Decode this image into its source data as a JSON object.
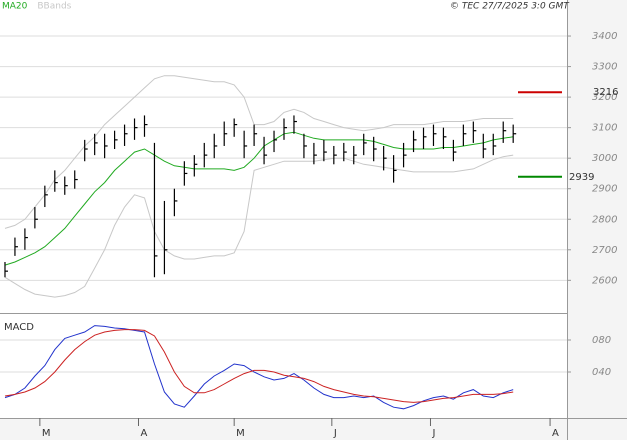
{
  "header": {
    "copyright": "© TEC 27/7/2025 3:0 GMT"
  },
  "xaxis": {
    "xlim": [
      -0.5,
      56.4
    ],
    "xticks": [
      {
        "value": 3.5,
        "label": "M"
      },
      {
        "value": 13.4,
        "label": "A"
      },
      {
        "value": 23.0,
        "label": "M"
      },
      {
        "value": 32.8,
        "label": "J"
      },
      {
        "value": 42.7,
        "label": "J"
      },
      {
        "value": 54.7,
        "label": "A"
      }
    ]
  },
  "chart_data": [
    {
      "type": "ohlc",
      "ylim": [
        2493,
        3518
      ],
      "yticks": [
        2600,
        2700,
        2800,
        2900,
        3000,
        3100,
        3200,
        3300,
        3400
      ],
      "grid": true,
      "bar_color": "#000",
      "high": [
        2660,
        2740,
        2770,
        2840,
        2910,
        2960,
        2940,
        2960,
        3060,
        3080,
        3080,
        3090,
        3110,
        3130,
        3140,
        3050,
        2860,
        2900,
        2990,
        3010,
        3050,
        3080,
        3120,
        3130,
        3090,
        3110,
        3070,
        3090,
        3130,
        3140,
        3080,
        3050,
        3060,
        3040,
        3050,
        3040,
        3080,
        3070,
        3040,
        3010,
        3050,
        3090,
        3100,
        3110,
        3100,
        3060,
        3110,
        3120,
        3080,
        3080,
        3120,
        3110
      ],
      "low": [
        2610,
        2680,
        2700,
        2770,
        2840,
        2890,
        2880,
        2900,
        2990,
        3010,
        3000,
        3030,
        3040,
        3060,
        3070,
        2610,
        2620,
        2810,
        2910,
        2940,
        2970,
        3000,
        3040,
        3070,
        3000,
        3040,
        2980,
        3020,
        3060,
        3080,
        3000,
        2980,
        2990,
        2980,
        2990,
        2980,
        3010,
        2990,
        2960,
        2920,
        2970,
        3020,
        3030,
        3040,
        3030,
        2990,
        3040,
        3050,
        3000,
        3010,
        3050,
        3050
      ],
      "close": [
        2630,
        2710,
        2740,
        2800,
        2880,
        2920,
        2910,
        2930,
        3030,
        3050,
        3040,
        3060,
        3080,
        3100,
        3110,
        2680,
        2700,
        2860,
        2950,
        2980,
        3010,
        3040,
        3080,
        3110,
        3040,
        3080,
        3010,
        3060,
        3100,
        3120,
        3040,
        3010,
        3020,
        3010,
        3020,
        3010,
        3050,
        3030,
        3000,
        2960,
        3010,
        3060,
        3070,
        3080,
        3070,
        3020,
        3080,
        3090,
        3030,
        3040,
        3090,
        3080
      ],
      "series": [
        {
          "name": "MA20",
          "color": "#22aa22",
          "values": [
            2650,
            2660,
            2675,
            2690,
            2710,
            2740,
            2770,
            2810,
            2850,
            2890,
            2920,
            2960,
            2990,
            3020,
            3030,
            3010,
            2990,
            2975,
            2970,
            2965,
            2965,
            2965,
            2965,
            2960,
            2970,
            3000,
            3040,
            3060,
            3080,
            3085,
            3075,
            3065,
            3060,
            3060,
            3060,
            3060,
            3060,
            3055,
            3045,
            3035,
            3030,
            3030,
            3030,
            3030,
            3035,
            3035,
            3040,
            3045,
            3050,
            3060,
            3065,
            3070
          ]
        },
        {
          "name": "BBands",
          "color": "#c8c8c8",
          "upper": [
            2770,
            2780,
            2800,
            2840,
            2880,
            2930,
            2960,
            3000,
            3040,
            3070,
            3110,
            3140,
            3170,
            3200,
            3230,
            3260,
            3270,
            3270,
            3265,
            3260,
            3255,
            3250,
            3250,
            3240,
            3200,
            3110,
            3110,
            3120,
            3150,
            3160,
            3150,
            3130,
            3120,
            3110,
            3100,
            3095,
            3090,
            3095,
            3100,
            3110,
            3110,
            3110,
            3110,
            3115,
            3120,
            3120,
            3120,
            3125,
            3130,
            3130,
            3130,
            3130
          ],
          "lower": [
            2610,
            2590,
            2570,
            2555,
            2550,
            2545,
            2550,
            2560,
            2580,
            2640,
            2700,
            2780,
            2840,
            2880,
            2870,
            2760,
            2700,
            2680,
            2670,
            2670,
            2675,
            2680,
            2680,
            2690,
            2760,
            2960,
            2970,
            2980,
            2990,
            2990,
            2990,
            2990,
            2995,
            3000,
            3000,
            2990,
            2980,
            2975,
            2970,
            2965,
            2960,
            2955,
            2955,
            2955,
            2955,
            2955,
            2960,
            2965,
            2980,
            2995,
            3005,
            3010
          ]
        }
      ],
      "levels": [
        {
          "value": 3216,
          "color": "#cc0000"
        },
        {
          "value": 2939,
          "color": "#008800"
        }
      ]
    },
    {
      "type": "line",
      "title": "MACD",
      "ylim": [
        -17.5,
        107.5
      ],
      "yticks": [
        {
          "value": 80,
          "label": "080"
        },
        {
          "value": 40,
          "label": "040"
        }
      ],
      "grid": true,
      "series": [
        {
          "color": "#2233cc",
          "values": [
            8,
            12,
            20,
            35,
            48,
            68,
            82,
            86,
            90,
            98,
            97,
            95,
            94,
            92,
            90,
            50,
            15,
            0,
            -4,
            10,
            25,
            35,
            42,
            50,
            48,
            40,
            34,
            30,
            32,
            38,
            30,
            20,
            12,
            8,
            8,
            10,
            8,
            10,
            2,
            -4,
            -6,
            -2,
            4,
            8,
            10,
            6,
            14,
            18,
            10,
            8,
            14,
            18
          ]
        },
        {
          "color": "#cc2222",
          "values": [
            10,
            12,
            15,
            20,
            28,
            40,
            55,
            68,
            78,
            86,
            90,
            92,
            93,
            93,
            92,
            85,
            65,
            40,
            22,
            14,
            14,
            18,
            25,
            32,
            38,
            42,
            42,
            40,
            36,
            34,
            32,
            28,
            22,
            18,
            15,
            12,
            10,
            9,
            7,
            5,
            3,
            2,
            3,
            5,
            7,
            8,
            10,
            12,
            12,
            12,
            13,
            15
          ]
        }
      ]
    }
  ]
}
